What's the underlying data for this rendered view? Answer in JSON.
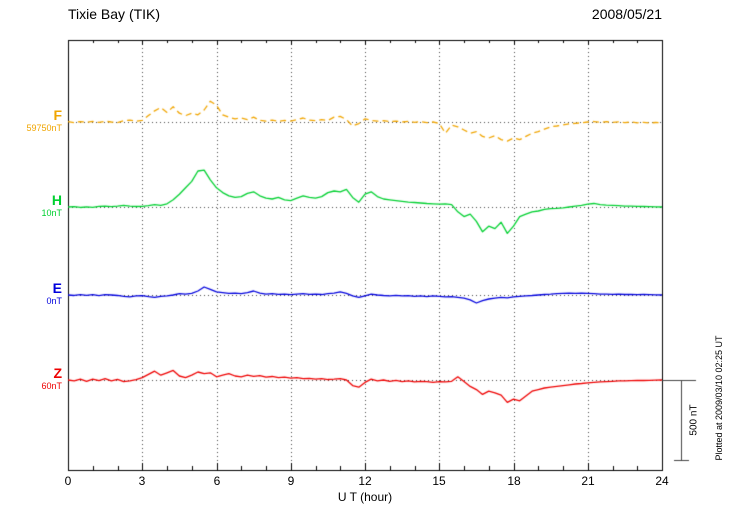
{
  "chart_data": {
    "type": "line",
    "title": "Tixie Bay (TIK)",
    "date": "2008/05/21",
    "xlabel": "U T (hour)",
    "x_min": 0,
    "x_max": 24,
    "x_tick_interval": 3,
    "x_minor_tick_interval": 1,
    "x_ticks": [
      "0",
      "3",
      "6",
      "9",
      "12",
      "15",
      "18",
      "21",
      "24"
    ],
    "sample_interval_hours": 0.25,
    "unit": "nT",
    "grid": "dotted vertical lines every 3 hours, dotted horizontal baseline per trace",
    "scale_bar": {
      "label": "500 nT",
      "value_nT": 500
    },
    "plotted_note": "Plotted at 2009/03/10 02:25 UT",
    "series": [
      {
        "name": "F",
        "baseline_label": "59750nT",
        "baseline_value_nT": 59750,
        "color": "#f0a500",
        "dashed": true,
        "values": [
          2,
          -4,
          3,
          -2,
          4,
          -3,
          5,
          0,
          -4,
          8,
          12,
          4,
          10,
          40,
          70,
          90,
          60,
          95,
          55,
          40,
          55,
          45,
          75,
          130,
          105,
          45,
          30,
          20,
          25,
          15,
          30,
          10,
          5,
          12,
          4,
          10,
          6,
          14,
          25,
          12,
          8,
          15,
          10,
          30,
          35,
          15,
          -25,
          -10,
          20,
          10,
          5,
          8,
          2,
          6,
          0,
          4,
          -2,
          3,
          -4,
          0,
          -10,
          -70,
          -20,
          -30,
          -50,
          -70,
          -60,
          -90,
          -100,
          -85,
          -110,
          -120,
          -100,
          -110,
          -90,
          -70,
          -60,
          -45,
          -30,
          -25,
          -18,
          -12,
          -8,
          -5,
          0,
          3,
          -2,
          2,
          -3,
          1,
          -4,
          0,
          -5,
          -2,
          -6,
          -3,
          -4
        ]
      },
      {
        "name": "H",
        "baseline_label": "10nT",
        "baseline_value_nT": 10,
        "color": "#00d030",
        "dashed": false,
        "values": [
          0,
          2,
          -3,
          1,
          -2,
          4,
          6,
          2,
          5,
          10,
          6,
          3,
          4,
          8,
          15,
          10,
          20,
          45,
          80,
          120,
          160,
          225,
          230,
          170,
          120,
          90,
          70,
          60,
          65,
          85,
          95,
          70,
          55,
          50,
          60,
          45,
          40,
          55,
          70,
          60,
          55,
          65,
          90,
          100,
          95,
          110,
          60,
          30,
          80,
          95,
          65,
          50,
          45,
          40,
          35,
          30,
          28,
          25,
          22,
          20,
          18,
          20,
          15,
          -30,
          -60,
          -45,
          -90,
          -155,
          -120,
          -135,
          -95,
          -165,
          -120,
          -60,
          -45,
          -30,
          -25,
          -15,
          -10,
          -8,
          -5,
          0,
          5,
          10,
          18,
          22,
          15,
          12,
          10,
          8,
          6,
          5,
          4,
          3,
          2,
          1,
          0
        ]
      },
      {
        "name": "E",
        "baseline_label": "0nT",
        "baseline_value_nT": 0,
        "color": "#0000dd",
        "dashed": false,
        "values": [
          0,
          -3,
          2,
          -2,
          3,
          -4,
          2,
          0,
          -3,
          -8,
          -12,
          -6,
          -4,
          -10,
          -15,
          -8,
          -5,
          0,
          8,
          5,
          10,
          25,
          50,
          35,
          20,
          15,
          10,
          12,
          8,
          15,
          25,
          12,
          5,
          8,
          4,
          6,
          2,
          5,
          8,
          4,
          6,
          3,
          8,
          12,
          20,
          10,
          -5,
          -15,
          -5,
          5,
          0,
          -3,
          -5,
          -2,
          -6,
          -4,
          -8,
          -5,
          -10,
          -6,
          -8,
          -12,
          -10,
          -15,
          -20,
          -30,
          -50,
          -35,
          -25,
          -20,
          -15,
          -18,
          -12,
          -8,
          -5,
          -3,
          0,
          3,
          5,
          8,
          10,
          12,
          10,
          12,
          10,
          8,
          6,
          5,
          4,
          5,
          3,
          4,
          2,
          3,
          2,
          1,
          0
        ]
      },
      {
        "name": "Z",
        "baseline_label": "60nT",
        "baseline_value_nT": 60,
        "color": "#ee0000",
        "dashed": false,
        "values": [
          0,
          -5,
          5,
          -8,
          6,
          -4,
          8,
          -6,
          4,
          -10,
          -5,
          3,
          15,
          35,
          55,
          30,
          45,
          60,
          25,
          15,
          30,
          50,
          40,
          45,
          20,
          30,
          40,
          25,
          20,
          30,
          22,
          28,
          18,
          22,
          15,
          18,
          12,
          15,
          8,
          10,
          5,
          8,
          3,
          5,
          8,
          0,
          -35,
          -45,
          -15,
          5,
          -5,
          0,
          -8,
          -3,
          -10,
          -5,
          -12,
          -8,
          -10,
          -15,
          -10,
          -12,
          -8,
          20,
          -10,
          -40,
          -60,
          -90,
          -70,
          -80,
          -95,
          -140,
          -120,
          -130,
          -100,
          -70,
          -60,
          -50,
          -45,
          -40,
          -35,
          -30,
          -25,
          -22,
          -18,
          -15,
          -12,
          -10,
          -8,
          -6,
          -5,
          -4,
          -3,
          -3,
          -2,
          -1,
          0
        ]
      }
    ]
  }
}
